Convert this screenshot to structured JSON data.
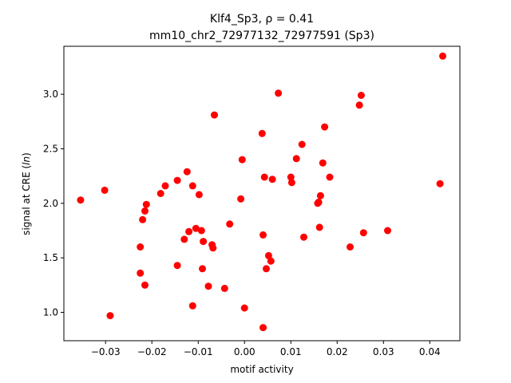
{
  "chart_data": {
    "type": "scatter",
    "title_line1": "Klf4_Sp3, ρ = 0.41",
    "title_line2": "mm10_chr2_72977132_72977591 (Sp3)",
    "xlabel": "motif activity",
    "ylabel": "signal at CRE (",
    "ylabel_italic": "ln",
    "ylabel_end": ")",
    "xlim": [
      -0.039,
      0.0465
    ],
    "ylim": [
      0.74,
      3.44
    ],
    "xticks": [
      -0.03,
      -0.02,
      -0.01,
      0.0,
      0.01,
      0.02,
      0.03,
      0.04
    ],
    "xtick_labels": [
      "−0.03",
      "−0.02",
      "−0.01",
      "0.00",
      "0.01",
      "0.02",
      "0.03",
      "0.04"
    ],
    "yticks": [
      1.0,
      1.5,
      2.0,
      2.5,
      3.0
    ],
    "ytick_labels": [
      "1.0",
      "1.5",
      "2.0",
      "2.5",
      "3.0"
    ],
    "marker_color": "#ff0000",
    "grid": false,
    "points": [
      {
        "x": -0.0354,
        "y": 2.03
      },
      {
        "x": -0.0302,
        "y": 2.12
      },
      {
        "x": -0.029,
        "y": 0.97
      },
      {
        "x": -0.0225,
        "y": 1.6
      },
      {
        "x": -0.0225,
        "y": 1.36
      },
      {
        "x": -0.022,
        "y": 1.85
      },
      {
        "x": -0.0215,
        "y": 1.25
      },
      {
        "x": -0.0215,
        "y": 1.93
      },
      {
        "x": -0.0212,
        "y": 1.99
      },
      {
        "x": -0.0181,
        "y": 2.09
      },
      {
        "x": -0.0171,
        "y": 2.16
      },
      {
        "x": -0.0145,
        "y": 2.21
      },
      {
        "x": -0.0145,
        "y": 1.43
      },
      {
        "x": -0.013,
        "y": 1.67
      },
      {
        "x": -0.0124,
        "y": 2.29
      },
      {
        "x": -0.012,
        "y": 1.74
      },
      {
        "x": -0.0112,
        "y": 2.16
      },
      {
        "x": -0.0112,
        "y": 1.06
      },
      {
        "x": -0.0105,
        "y": 1.77
      },
      {
        "x": -0.0098,
        "y": 2.08
      },
      {
        "x": -0.0093,
        "y": 1.75
      },
      {
        "x": -0.0091,
        "y": 1.4
      },
      {
        "x": -0.0089,
        "y": 1.65
      },
      {
        "x": -0.0078,
        "y": 1.24
      },
      {
        "x": -0.007,
        "y": 1.62
      },
      {
        "x": -0.0068,
        "y": 1.59
      },
      {
        "x": -0.0065,
        "y": 2.81
      },
      {
        "x": -0.0043,
        "y": 1.22
      },
      {
        "x": -0.0032,
        "y": 1.81
      },
      {
        "x": -0.0008,
        "y": 2.04
      },
      {
        "x": -0.0005,
        "y": 2.4
      },
      {
        "x": 0.0,
        "y": 1.04
      },
      {
        "x": 0.0038,
        "y": 2.64
      },
      {
        "x": 0.004,
        "y": 1.71
      },
      {
        "x": 0.004,
        "y": 0.86
      },
      {
        "x": 0.0043,
        "y": 2.24
      },
      {
        "x": 0.0047,
        "y": 1.4
      },
      {
        "x": 0.0052,
        "y": 1.52
      },
      {
        "x": 0.0057,
        "y": 1.47
      },
      {
        "x": 0.006,
        "y": 2.22
      },
      {
        "x": 0.0073,
        "y": 3.01
      },
      {
        "x": 0.01,
        "y": 2.24
      },
      {
        "x": 0.0102,
        "y": 2.19
      },
      {
        "x": 0.0112,
        "y": 2.41
      },
      {
        "x": 0.0124,
        "y": 2.54
      },
      {
        "x": 0.0128,
        "y": 1.69
      },
      {
        "x": 0.0158,
        "y": 2.0
      },
      {
        "x": 0.016,
        "y": 2.01
      },
      {
        "x": 0.0162,
        "y": 1.78
      },
      {
        "x": 0.0164,
        "y": 2.07
      },
      {
        "x": 0.0169,
        "y": 2.37
      },
      {
        "x": 0.0173,
        "y": 2.7
      },
      {
        "x": 0.0184,
        "y": 2.24
      },
      {
        "x": 0.0228,
        "y": 1.6
      },
      {
        "x": 0.0248,
        "y": 2.9
      },
      {
        "x": 0.0252,
        "y": 2.99
      },
      {
        "x": 0.0257,
        "y": 1.73
      },
      {
        "x": 0.0309,
        "y": 1.75
      },
      {
        "x": 0.0422,
        "y": 2.18
      },
      {
        "x": 0.0428,
        "y": 3.35
      }
    ]
  }
}
